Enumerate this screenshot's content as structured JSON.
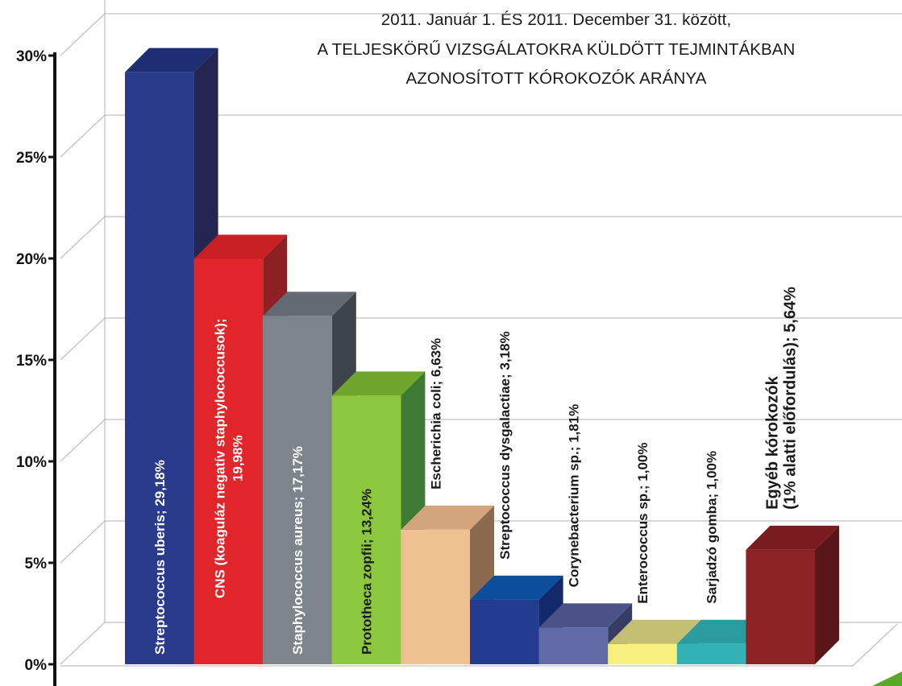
{
  "chart_data": {
    "type": "bar",
    "title_lines": [
      "2011. Január 1. ÉS 2011. December 31. között,",
      "A TELJESKÖRŰ VIZSGÁLATOKRA KÜLDÖTT TEJMINTÁKBAN",
      "AZONOSÍTOTT KÓROKOZÓK ARÁNYA"
    ],
    "ylim": [
      0,
      30
    ],
    "y_ticks": [
      "0%",
      "5%",
      "10%",
      "15%",
      "20%",
      "25%",
      "30%"
    ],
    "grid": true,
    "categories": [
      {
        "name": "Streptococcus uberis",
        "value": 29.18,
        "label": [
          "Streptococcus uberis; 29,18%"
        ],
        "label_inside": true,
        "front": "#2a3a8c",
        "top": "#1f2d72",
        "side": "#232650",
        "text": "#ffffff"
      },
      {
        "name": "CNS (koaguláz negatív staphylococcusok)",
        "value": 19.98,
        "label": [
          "CNS (koaguláz negatív staphylococcusok);",
          "19,98%"
        ],
        "label_inside": true,
        "front": "#e0262b",
        "top": "#c81f24",
        "side": "#8e1f24",
        "text": "#ffffff"
      },
      {
        "name": "Staphylococcus aureus",
        "value": 17.17,
        "label": [
          "Staphylococcus aureus; 17,17%"
        ],
        "label_inside": true,
        "front": "#7e848b",
        "top": "#646a71",
        "side": "#3e4449",
        "text": "#ffffff"
      },
      {
        "name": "Prototheca zopfii",
        "value": 13.24,
        "label": [
          "Prototheca zopfii; 13,24%"
        ],
        "label_inside": true,
        "front": "#8dc63f",
        "top": "#6fa52c",
        "side": "#3d7a33",
        "text": "#1a1a1a"
      },
      {
        "name": "Escherichia coli",
        "value": 6.63,
        "label": [
          "Escherichia coli; 6,63%"
        ],
        "label_inside": false,
        "front": "#efc091",
        "top": "#d4a47a",
        "side": "#8b6a4f",
        "text": "#1a1a1a"
      },
      {
        "name": "Streptococcus dysgalactiae",
        "value": 3.18,
        "label": [
          "Streptococcus dysgalactiae; 3,18%"
        ],
        "label_inside": false,
        "front": "#233c8f",
        "top": "#0b4f9c",
        "side": "#13296b",
        "text": "#1a1a1a"
      },
      {
        "name": "Corynebacterium sp.",
        "value": 1.81,
        "label": [
          "Corynebacterium sp.; 1,81%"
        ],
        "label_inside": false,
        "front": "#5f6aa6",
        "top": "#4a5288",
        "side": "#363c63",
        "text": "#1a1a1a"
      },
      {
        "name": "Enterococcus sp.",
        "value": 1.0,
        "label": [
          "Enterococcus sp.; 1,00%"
        ],
        "label_inside": false,
        "front": "#f7f07c",
        "top": "#c4bf72",
        "side": "#a09d5c",
        "text": "#1a1a1a"
      },
      {
        "name": "Sarjadzó gomba",
        "value": 1.0,
        "label": [
          "Sarjadzó gomba; 1,00%"
        ],
        "label_inside": false,
        "front": "#33b3b7",
        "top": "#2a9c9f",
        "side": "#1f7a7c",
        "text": "#1a1a1a"
      },
      {
        "name": "Egyéb kórokozók (1% alatti előfordulás)",
        "value": 5.64,
        "label": [
          "Egyéb kórokozók",
          "(1% alatti előfordulás); 5,64%"
        ],
        "label_inside": false,
        "front": "#8b2325",
        "top": "#7a1d20",
        "side": "#5a1719",
        "text": "#1a1a1a"
      }
    ]
  },
  "colors": {
    "axis": "#111111",
    "grid": "#b0b0b0",
    "accent_arrow": "#5aa82a"
  }
}
